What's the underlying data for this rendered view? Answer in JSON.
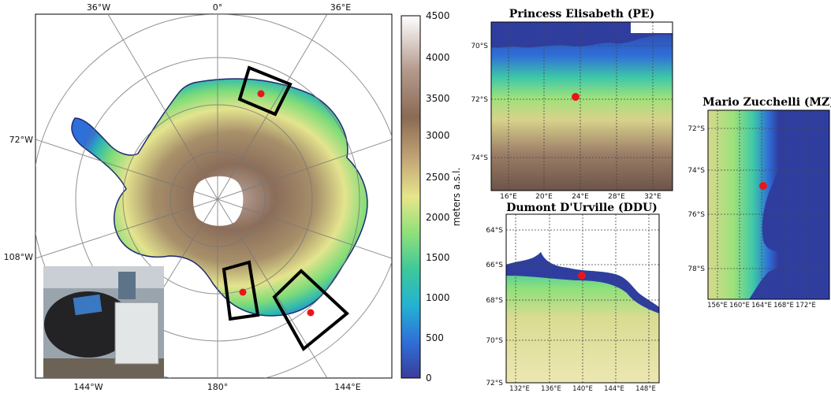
{
  "main_map": {
    "lon_labels": {
      "top": [
        "36°W",
        "0°",
        "36°E"
      ],
      "left": [
        "72°W",
        "108°W"
      ],
      "bottom": [
        "144°W",
        "180°",
        "144°E"
      ]
    },
    "colorbar": {
      "label": "meters a.s.l.",
      "ticks": [
        "4500",
        "4000",
        "3500",
        "3000",
        "2500",
        "2000",
        "1500",
        "1000",
        "500",
        "0"
      ]
    }
  },
  "panels": {
    "pe": {
      "title": "Princess Elisabeth (PE)",
      "lat_ticks": [
        "70°S",
        "72°S",
        "74°S"
      ],
      "lon_ticks": [
        "16°E",
        "20°E",
        "24°E",
        "28°E",
        "32°E"
      ]
    },
    "ddu": {
      "title": "Dumont D'Urville (DDU)",
      "lat_ticks": [
        "64°S",
        "66°S",
        "68°S",
        "70°S",
        "72°S"
      ],
      "lon_ticks": [
        "132°E",
        "136°E",
        "140°E",
        "144°E",
        "148°E"
      ]
    },
    "mz": {
      "title": "Mario Zucchelli (MZ)",
      "lat_ticks": [
        "72°S",
        "74°S",
        "76°S",
        "78°S"
      ],
      "lon_ticks": [
        "156°E",
        "160°E",
        "164°E",
        "168°E",
        "172°E"
      ]
    }
  },
  "colors": {
    "ocean": "#2f3e9e",
    "station": "#e8161b",
    "region_box": "#000000",
    "elevation_scale": [
      "#3b4aa8",
      "#2f8fe0",
      "#3ec8a8",
      "#8fe07a",
      "#e6e68a",
      "#c4a878",
      "#8a6a55",
      "#b49a8c",
      "#ffffff"
    ]
  }
}
